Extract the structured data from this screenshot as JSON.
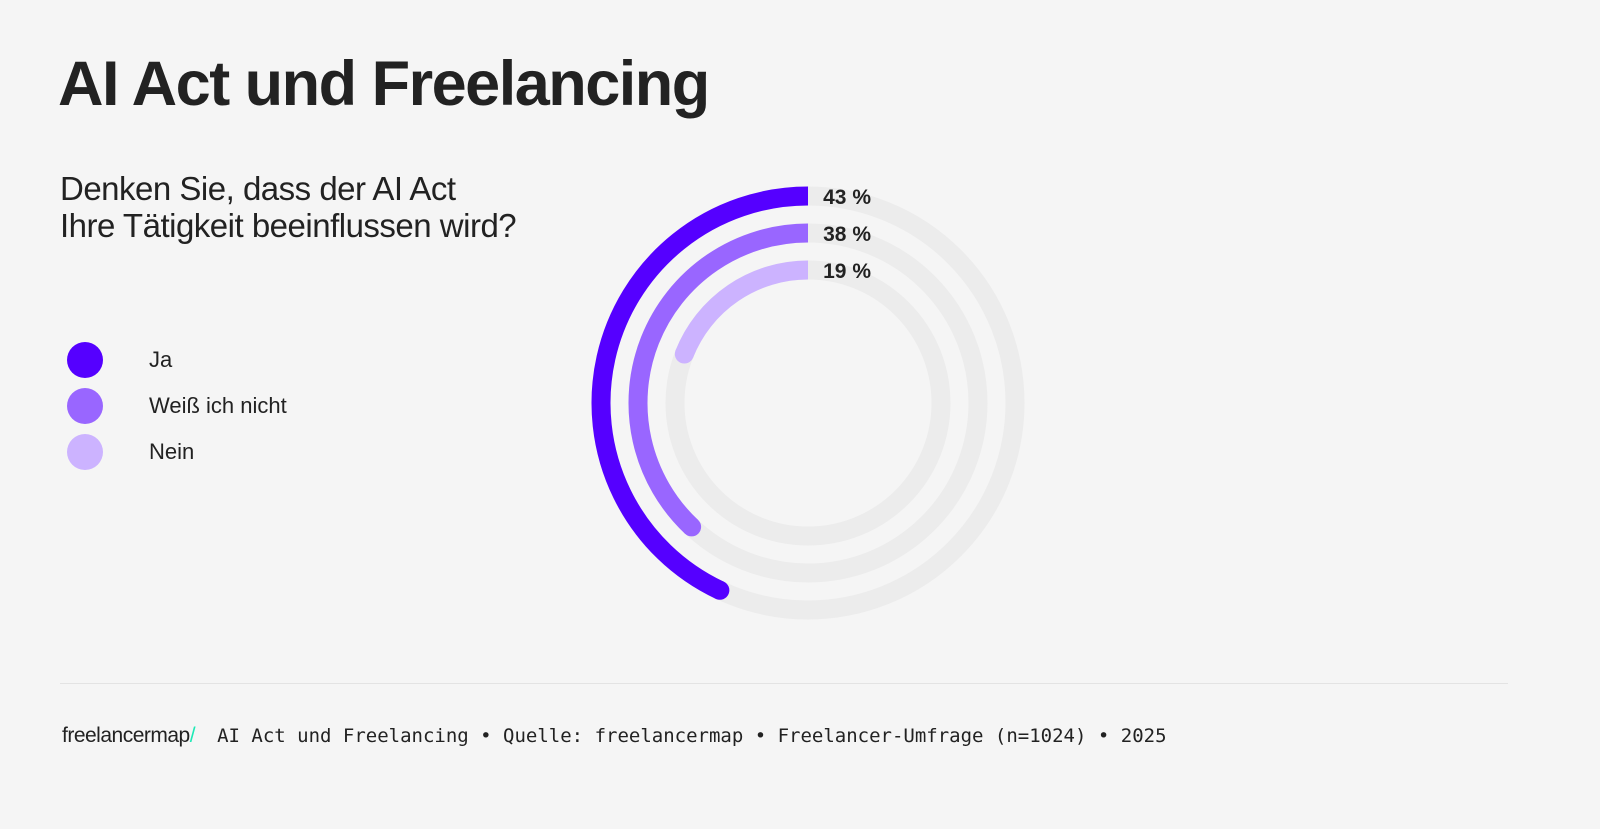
{
  "title": "AI Act und Freelancing",
  "question_line1": "Denken Sie, dass der AI Act",
  "question_line2": "Ihre Tätigkeit beeinflussen wird?",
  "chart_data": {
    "type": "radial-bar",
    "categories": [
      "Ja",
      "Weiß ich nicht",
      "Nein"
    ],
    "values": [
      43,
      38,
      19
    ],
    "unit": "%",
    "labels": [
      "43 %",
      "38 %",
      "19 %"
    ],
    "colors": [
      "#5500ff",
      "#9966ff",
      "#ccb3ff"
    ],
    "track_color": "#ececec",
    "max": 100,
    "direction": "counterclockwise from top",
    "legend_position": "left"
  },
  "footer": {
    "logo": "freelancermap",
    "logo_slash": "/",
    "logo_accent": "#1de9b6",
    "text": "AI Act und Freelancing • Quelle: freelancermap • Freelancer-Umfrage (n=1024) • 2025"
  }
}
